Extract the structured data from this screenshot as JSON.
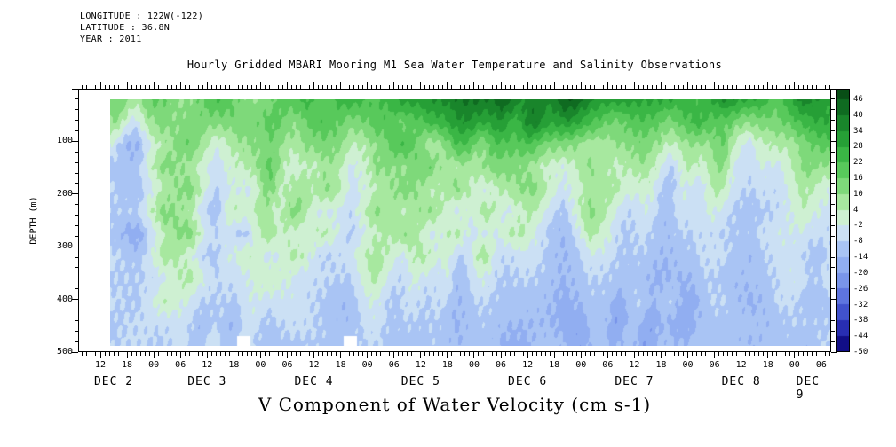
{
  "header": {
    "longitude": "LONGITUDE : 122W(-122)",
    "latitude": "LATITUDE : 36.8N",
    "year": "YEAR : 2011",
    "title": "Hourly Gridded MBARI Mooring M1 Sea Water Temperature and Salinity Observations"
  },
  "axes": {
    "y_label": "DEPTH (m)",
    "x_label": "V Component of Water Velocity (cm s-1)"
  },
  "chart_data": {
    "type": "heatmap",
    "title": "Hourly Gridded MBARI Mooring M1 Sea Water Temperature and Salinity Observations",
    "xlabel": "V Component of Water Velocity (cm s-1)",
    "ylabel": "DEPTH (m)",
    "value_units": "cm s-1",
    "depth_range_m": [
      0,
      500
    ],
    "time_range": "2011 DEC 2 12:00 to DEC 9 06:00, 6-hour ticks",
    "colorbar_range": [
      -50,
      50
    ],
    "colorbar_step": 6,
    "grid": "off",
    "y_ticks": [
      100,
      200,
      300,
      400,
      500
    ],
    "x_ticklabels": [
      "12",
      "18",
      "00",
      "06",
      "12",
      "18",
      "00",
      "06",
      "12",
      "18",
      "00",
      "06",
      "12",
      "18",
      "00",
      "06",
      "12",
      "18",
      "00",
      "06",
      "12",
      "18",
      "00",
      "06",
      "12",
      "18",
      "00",
      "06"
    ],
    "dates": [
      {
        "label": "DEC 2",
        "hour": 3
      },
      {
        "label": "DEC 3",
        "hour": 24
      },
      {
        "label": "DEC 4",
        "hour": 48
      },
      {
        "label": "DEC 5",
        "hour": 72
      },
      {
        "label": "DEC 6",
        "hour": 96
      },
      {
        "label": "DEC 7",
        "hour": 120
      },
      {
        "label": "DEC 8",
        "hour": 144
      },
      {
        "label": "DEC 9",
        "hour": 159
      }
    ],
    "colorbar_ticks": [
      46,
      40,
      34,
      28,
      22,
      16,
      10,
      4,
      -2,
      -8,
      -14,
      -20,
      -26,
      -32,
      -38,
      -44,
      -50
    ],
    "colormap": [
      {
        "value": -50,
        "color": "#06006b"
      },
      {
        "value": -44,
        "color": "#1c1ba2"
      },
      {
        "value": -38,
        "color": "#3340c2"
      },
      {
        "value": -32,
        "color": "#4f63d8"
      },
      {
        "value": -26,
        "color": "#6c86e6"
      },
      {
        "value": -20,
        "color": "#86a3ee"
      },
      {
        "value": -14,
        "color": "#9cb8f3"
      },
      {
        "value": -8,
        "color": "#b6cff5"
      },
      {
        "value": -2,
        "color": "#e0f1f2"
      },
      {
        "value": 4,
        "color": "#bceeb2"
      },
      {
        "value": 10,
        "color": "#92e18c"
      },
      {
        "value": 16,
        "color": "#6ad168"
      },
      {
        "value": 22,
        "color": "#46c14d"
      },
      {
        "value": 28,
        "color": "#2eab3c"
      },
      {
        "value": 34,
        "color": "#1e9230"
      },
      {
        "value": 40,
        "color": "#137826"
      },
      {
        "value": 46,
        "color": "#0b5e1b"
      },
      {
        "value": 50,
        "color": "#074914"
      }
    ],
    "columns_hours": [
      0,
      6,
      12,
      18,
      24,
      30,
      36,
      42,
      48,
      54,
      60,
      66,
      72,
      78,
      84,
      90,
      96,
      102,
      108,
      114,
      120,
      126,
      132,
      138,
      144,
      150,
      156,
      162
    ],
    "row_depths_m": [
      20,
      60,
      100,
      140,
      180,
      220,
      260,
      300,
      340,
      380,
      430,
      480
    ],
    "values": [
      [
        14,
        10,
        16,
        12,
        18,
        14,
        12,
        24,
        18,
        26,
        20,
        30,
        34,
        38,
        42,
        40,
        34,
        44,
        38,
        30,
        26,
        30,
        22,
        34,
        28,
        20,
        36,
        30
      ],
      [
        8,
        -2,
        12,
        16,
        10,
        14,
        18,
        12,
        22,
        12,
        20,
        14,
        26,
        30,
        32,
        28,
        36,
        30,
        24,
        16,
        20,
        14,
        24,
        18,
        10,
        16,
        22,
        26
      ],
      [
        -6,
        -14,
        6,
        18,
        -2,
        10,
        14,
        6,
        16,
        4,
        12,
        18,
        8,
        20,
        14,
        22,
        18,
        12,
        6,
        10,
        14,
        4,
        10,
        14,
        -6,
        8,
        12,
        16
      ],
      [
        -12,
        -10,
        12,
        8,
        -6,
        4,
        16,
        -2,
        10,
        -4,
        14,
        6,
        16,
        4,
        10,
        14,
        6,
        -2,
        10,
        4,
        8,
        -6,
        4,
        8,
        -8,
        -2,
        14,
        6
      ],
      [
        -8,
        -12,
        4,
        14,
        -8,
        -2,
        10,
        4,
        12,
        -6,
        8,
        12,
        4,
        10,
        -2,
        8,
        12,
        -4,
        4,
        8,
        -2,
        -8,
        -4,
        4,
        -10,
        -6,
        8,
        -2
      ],
      [
        -10,
        -6,
        10,
        4,
        -10,
        6,
        4,
        10,
        -2,
        -8,
        12,
        4,
        10,
        -4,
        6,
        -2,
        4,
        -8,
        8,
        -2,
        -6,
        -10,
        -2,
        -4,
        -12,
        -8,
        4,
        -6
      ],
      [
        -12,
        -14,
        4,
        10,
        -6,
        -8,
        8,
        -2,
        6,
        -10,
        4,
        10,
        -2,
        4,
        -6,
        6,
        -4,
        -10,
        4,
        -6,
        -8,
        -12,
        -6,
        -8,
        -10,
        -4,
        -2,
        -8
      ],
      [
        -10,
        -8,
        8,
        -2,
        -10,
        4,
        -4,
        6,
        -8,
        -6,
        8,
        -2,
        6,
        -8,
        4,
        -6,
        -8,
        -12,
        -4,
        -8,
        -10,
        -14,
        -8,
        -6,
        -12,
        -8,
        -6,
        -10
      ],
      [
        -12,
        -8,
        -2,
        6,
        -8,
        -4,
        4,
        -6,
        -4,
        -10,
        4,
        -6,
        -2,
        -10,
        -4,
        -8,
        -10,
        -14,
        -8,
        -10,
        -12,
        -16,
        -10,
        -12,
        -8,
        -10,
        -4,
        -8
      ],
      [
        -8,
        -10,
        4,
        -4,
        -10,
        -6,
        -2,
        -8,
        -6,
        -12,
        -4,
        -8,
        -6,
        -12,
        -8,
        -10,
        -12,
        -16,
        -10,
        -14,
        -10,
        -12,
        -14,
        -10,
        -12,
        -8,
        -10,
        -12
      ],
      [
        -10,
        -8,
        -4,
        -8,
        -12,
        -8,
        -6,
        -10,
        -8,
        -10,
        -6,
        -10,
        -8,
        -14,
        -10,
        -12,
        -14,
        -18,
        -12,
        -16,
        -14,
        -18,
        -12,
        -14,
        -10,
        -12,
        -8,
        -10
      ],
      [
        -8,
        -10,
        -6,
        -10,
        -8,
        null,
        -8,
        -12,
        -10,
        null,
        -8,
        -12,
        -10,
        -12,
        -12,
        -14,
        -12,
        -16,
        -14,
        -12,
        -16,
        -14,
        -10,
        -12,
        -14,
        -10,
        -12,
        -8
      ]
    ]
  }
}
